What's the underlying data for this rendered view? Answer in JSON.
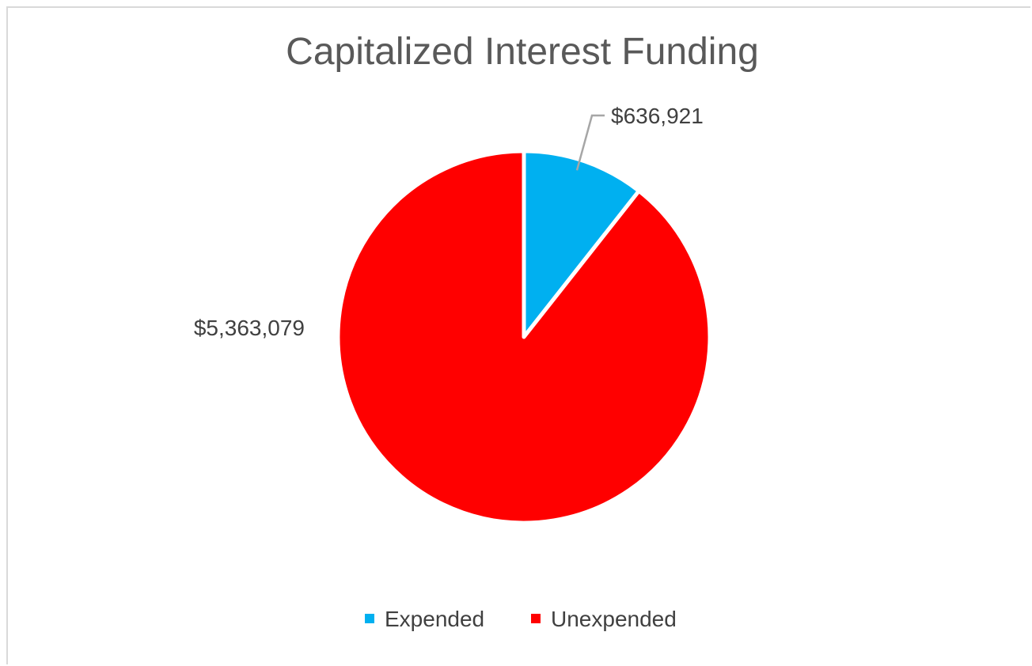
{
  "chart_data": {
    "type": "pie",
    "title": "Capitalized Interest Funding",
    "categories": [
      "Expended",
      "Unexpended"
    ],
    "values": [
      636921,
      5363079
    ],
    "data_labels": [
      "$636,921",
      "$5,363,079"
    ],
    "colors": [
      "#00b0f0",
      "#ff0000"
    ],
    "legend": {
      "position": "bottom",
      "entries": [
        "Expended",
        "Unexpended"
      ]
    },
    "start_angle": "12 o'clock",
    "direction": "clockwise"
  }
}
